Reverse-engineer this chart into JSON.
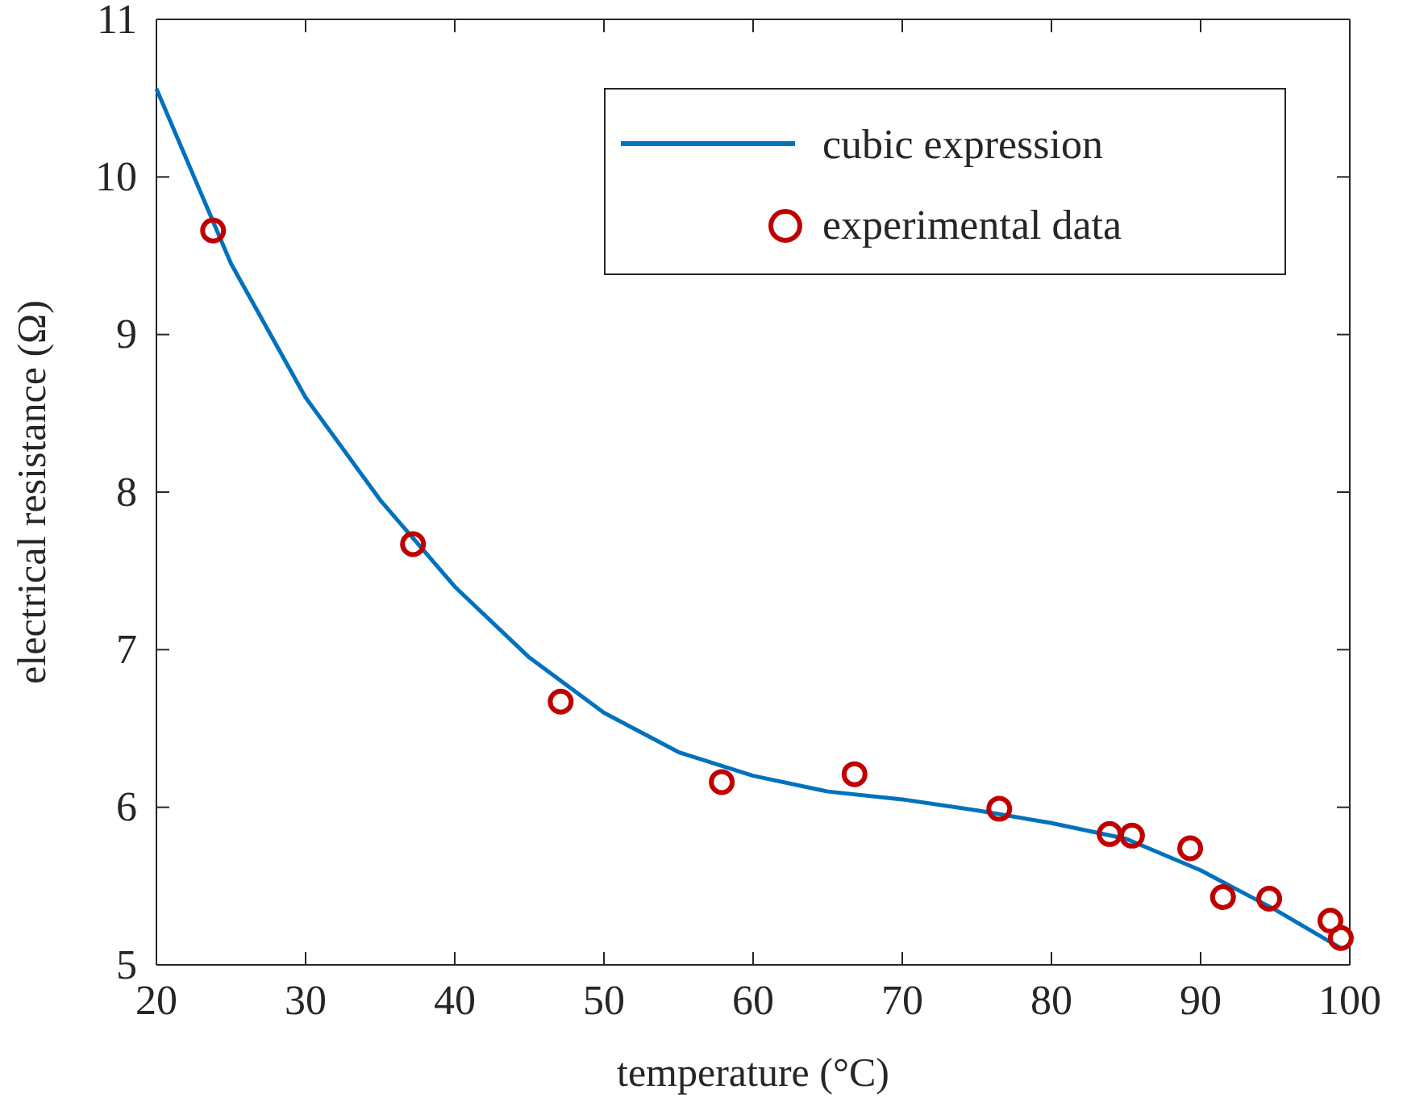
{
  "chart_data": {
    "type": "line",
    "xlabel": "temperature (°C)",
    "ylabel": "electrical resistance (Ω)",
    "xlim": [
      20,
      100
    ],
    "ylim": [
      5,
      11
    ],
    "xticks": [
      20,
      30,
      40,
      50,
      60,
      70,
      80,
      90,
      100
    ],
    "yticks": [
      5,
      6,
      7,
      8,
      9,
      10,
      11
    ],
    "grid": false,
    "legend": "top right",
    "series": [
      {
        "name": "cubic expression",
        "color": "#0072bd",
        "marker": "none",
        "line_style": "solid",
        "x": [
          20,
          25,
          30,
          35,
          40,
          45,
          50,
          55,
          60,
          65,
          70,
          75,
          80,
          85,
          90,
          95,
          99.5
        ],
        "values": [
          10.56,
          9.45,
          8.6,
          7.95,
          7.4,
          6.95,
          6.6,
          6.35,
          6.2,
          6.1,
          6.05,
          5.98,
          5.9,
          5.8,
          5.6,
          5.35,
          5.1
        ]
      },
      {
        "name": "experimental data",
        "type": "scatter",
        "color": "#c00000",
        "marker": "circle",
        "x": [
          23.8,
          37.2,
          47.1,
          57.9,
          66.8,
          76.5,
          83.9,
          85.4,
          89.3,
          91.5,
          94.6,
          98.7,
          99.4
        ],
        "values": [
          9.66,
          7.67,
          6.67,
          6.16,
          6.21,
          5.99,
          5.83,
          5.82,
          5.74,
          5.43,
          5.42,
          5.28,
          5.17
        ]
      }
    ]
  }
}
